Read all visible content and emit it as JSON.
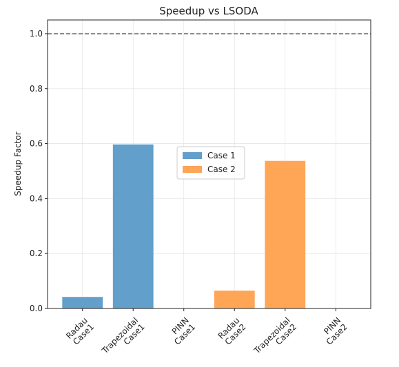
{
  "chart_data": {
    "type": "bar",
    "title": "Speedup vs LSODA",
    "y_label": "Speedup Factor",
    "categories": [
      "Radau\nCase1",
      "Trapezoidal\nCase1",
      "PINN\nCase1",
      "Radau\nCase2",
      "Trapezoidal\nCase2",
      "PINN\nCase2"
    ],
    "series": [
      {
        "name": "Case 1",
        "color": "#629fca",
        "values": [
          0.042,
          0.597,
          0,
          null,
          null,
          null
        ]
      },
      {
        "name": "Case 2",
        "color": "#ffa556",
        "values": [
          null,
          null,
          null,
          0.065,
          0.537,
          0
        ]
      }
    ],
    "ylim": [
      0,
      1.05
    ],
    "yticks": [
      {
        "value": 0,
        "label": "0.0"
      },
      {
        "value": 0.2,
        "label": "0.2"
      },
      {
        "value": 0.4,
        "label": "0.4"
      },
      {
        "value": 0.6,
        "label": "0.6"
      },
      {
        "value": 0.8,
        "label": "0.8"
      },
      {
        "value": 1,
        "label": "1.0"
      }
    ],
    "reference_line": 1,
    "grid": true,
    "legend": "center"
  }
}
